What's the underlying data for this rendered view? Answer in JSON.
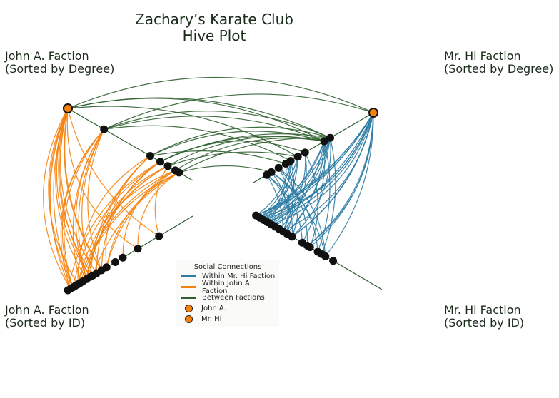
{
  "title_line1": "Zachary’s Karate Club",
  "title_line2": "Hive Plot",
  "axes": {
    "top_left": {
      "line1": "John A. Faction",
      "line2": "(Sorted by Degree)"
    },
    "top_right": {
      "line1": "Mr. Hi Faction",
      "line2": "(Sorted by Degree)"
    },
    "bottom_left": {
      "line1": "John A. Faction",
      "line2": "(Sorted by ID)"
    },
    "bottom_right": {
      "line1": "Mr. Hi Faction",
      "line2": "(Sorted by ID)"
    }
  },
  "legend": {
    "title": "Social Connections",
    "within_hi": "Within Mr. Hi Faction",
    "within_john": "Within John A. Faction",
    "between": "Between Factions",
    "john": "John A.",
    "hi": "Mr. Hi"
  },
  "colors": {
    "within_hi": "#2b7ba3",
    "within_john": "#f5820d",
    "between": "#2e5e2e",
    "node": "#111111",
    "highlight": "#f5820d"
  },
  "nodes": {
    "john_degree_count": 7,
    "john_id_count": 17,
    "hi_degree_count": 10,
    "hi_id_count": 17
  }
}
